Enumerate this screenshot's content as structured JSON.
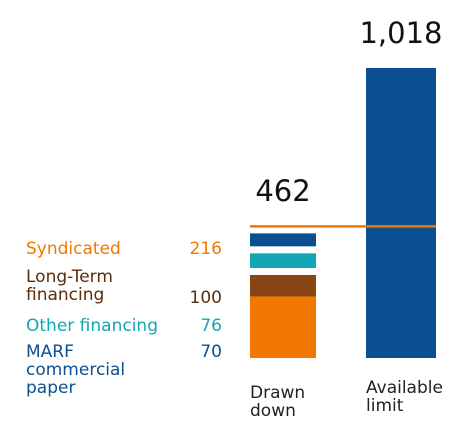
{
  "chart_data": {
    "type": "stacked_bar",
    "categories": [
      "Drawn down",
      "Available limit"
    ],
    "series": [
      {
        "name": "Syndicated",
        "color": "#f07800",
        "label_color": "#f07800",
        "values": [
          216,
          null
        ]
      },
      {
        "name": "Long-Term financing",
        "color": "#8a4514",
        "label_color": "#5a2d0c",
        "values": [
          100,
          null
        ]
      },
      {
        "name": "Other financing",
        "color": "#13a6b5",
        "label_color": "#13a6b5",
        "values": [
          76,
          null
        ]
      },
      {
        "name": "MARF commercial paper",
        "color": "#0b4f91",
        "label_color": "#0b4f91",
        "values": [
          70,
          null
        ]
      }
    ],
    "totals": {
      "values": [
        462,
        1018
      ],
      "value_labels": [
        "462",
        "1,018"
      ],
      "color": "#0b4f91"
    },
    "line_color": "#f07800"
  }
}
